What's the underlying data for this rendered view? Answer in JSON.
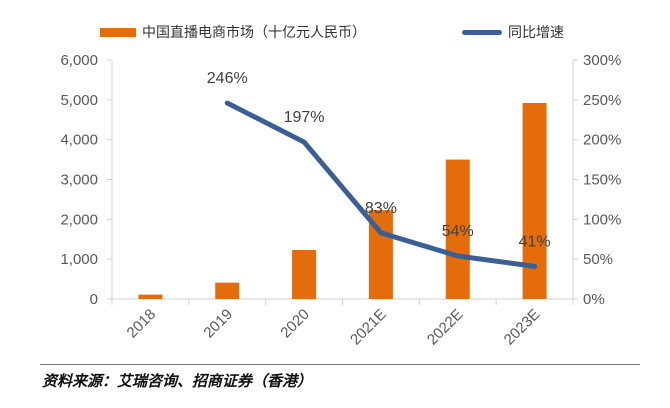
{
  "chart_data": {
    "type": "bar",
    "categories": [
      "2018",
      "2019",
      "2020",
      "2021E",
      "2022E",
      "2023E"
    ],
    "series": [
      {
        "name": "中国直播电商市场（十亿元人民币）",
        "type": "bar",
        "axis": "left",
        "color": "#E46C0A",
        "values": [
          110,
          410,
          1230,
          2230,
          3500,
          4920
        ]
      },
      {
        "name": "同比增速",
        "type": "line",
        "axis": "right",
        "color": "#3A5F95",
        "values": [
          null,
          246,
          197,
          83,
          54,
          41
        ],
        "labels": [
          "",
          "246%",
          "197%",
          "83%",
          "54%",
          "41%"
        ]
      }
    ],
    "ylim_left": [
      0,
      6000
    ],
    "yticks_left": [
      "0",
      "1,000",
      "2,000",
      "3,000",
      "4,000",
      "5,000",
      "6,000"
    ],
    "ylim_right": [
      0,
      300
    ],
    "yticks_right": [
      "0%",
      "50%",
      "100%",
      "150%",
      "200%",
      "250%",
      "300%"
    ],
    "legend_position": "top",
    "grid": false
  },
  "source": "资料来源：艾瑞咨询、招商证券（香港）"
}
